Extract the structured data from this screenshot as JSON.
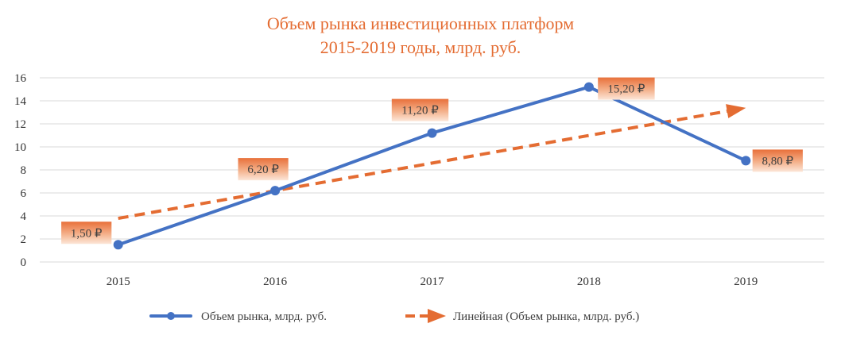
{
  "chart_data": {
    "type": "line",
    "title": [
      "Объем рынка инвестиционных платформ",
      "2015-2019 годы, млрд. руб."
    ],
    "categories": [
      "2015",
      "2016",
      "2017",
      "2018",
      "2019"
    ],
    "ylim": [
      0,
      16
    ],
    "yticks": [
      0,
      2,
      4,
      6,
      8,
      10,
      12,
      14,
      16
    ],
    "grid": true,
    "legend_position": "bottom",
    "series": [
      {
        "name": "Объем рынка, млрд. руб.",
        "values": [
          1.5,
          6.2,
          11.2,
          15.2,
          8.8
        ],
        "data_labels": [
          "1,50 ₽",
          "6,20 ₽",
          "11,20 ₽",
          "15,20 ₽",
          "8,80 ₽"
        ],
        "color": "#4472C4",
        "style": "solid-markers"
      },
      {
        "name": "Линейная (Объем рынка, млрд. руб.)",
        "trendline": "linear",
        "values": [
          3.79,
          6.19,
          8.59,
          10.99,
          13.39
        ],
        "color": "#E46C32",
        "style": "dashed-arrow"
      }
    ]
  }
}
